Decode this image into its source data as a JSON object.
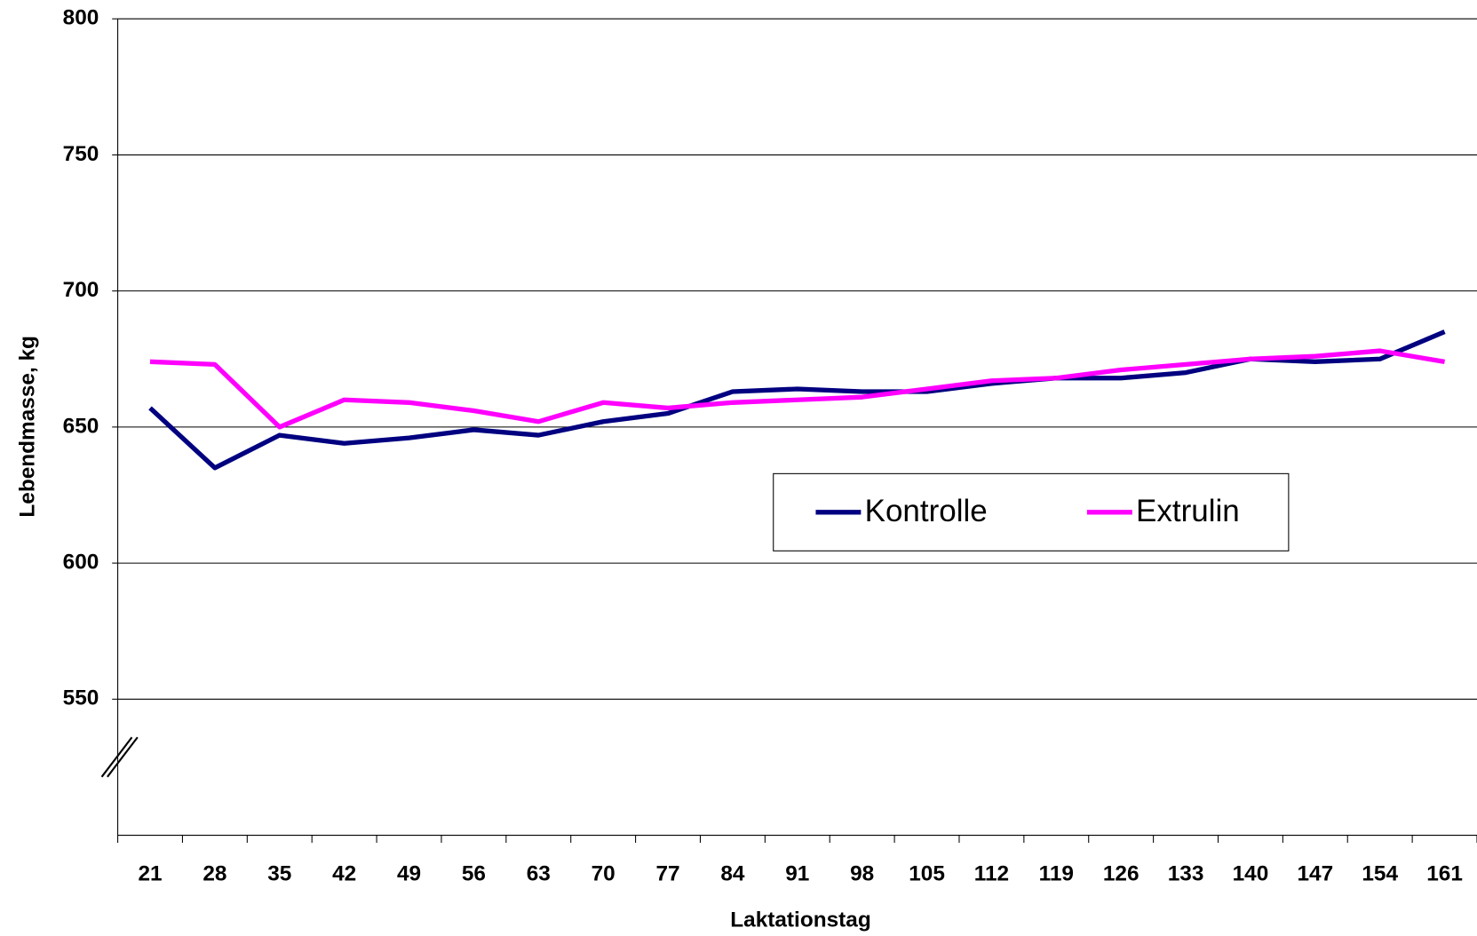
{
  "chart_data": {
    "type": "line",
    "x_label": "Laktationstag",
    "y_label": "Lebendmasse, kg",
    "categories": [
      "21",
      "28",
      "35",
      "42",
      "49",
      "56",
      "63",
      "70",
      "77",
      "84",
      "91",
      "98",
      "105",
      "112",
      "119",
      "126",
      "133",
      "140",
      "147",
      "154",
      "161"
    ],
    "series": [
      {
        "name": "Kontrolle",
        "color": "#000080",
        "values": [
          657,
          635,
          647,
          644,
          646,
          649,
          647,
          652,
          655,
          663,
          664,
          663,
          663,
          666,
          668,
          668,
          670,
          675,
          674,
          675,
          685
        ]
      },
      {
        "name": "Extrulin",
        "color": "#ff00ff",
        "values": [
          674,
          673,
          650,
          660,
          659,
          656,
          652,
          659,
          657,
          659,
          660,
          661,
          664,
          667,
          668,
          671,
          673,
          675,
          676,
          678,
          674
        ]
      }
    ],
    "ylim": [
      500,
      800
    ],
    "yticks": [
      550,
      600,
      650,
      700,
      750,
      800
    ],
    "grid": true
  }
}
